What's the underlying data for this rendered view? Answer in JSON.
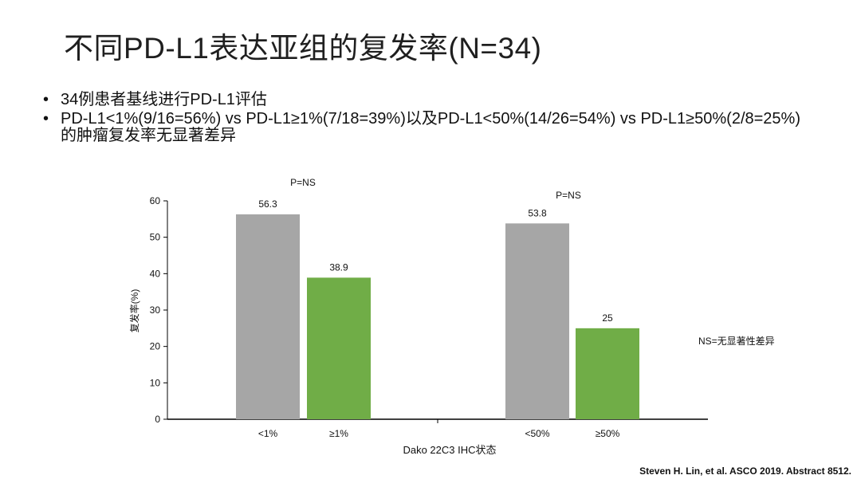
{
  "slide": {
    "title": "不同PD-L1表达亚组的复发率(N=34)",
    "bullets": [
      "34例患者基线进行PD-L1评估",
      "PD-L1<1%(9/16=56%) vs PD-L1≥1%(7/18=39%)以及PD-L1<50%(14/26=54%) vs PD-L1≥50%(2/8=25%)的肿瘤复发率无显著差异"
    ],
    "citation": "Steven H. Lin, et al. ASCO 2019. Abstract 8512."
  },
  "chart_data": {
    "type": "bar",
    "categories": [
      "<1%",
      "≥1%",
      "<50%",
      "≥50%"
    ],
    "values": [
      56.3,
      38.9,
      53.8,
      25
    ],
    "data_labels": [
      "56.3",
      "38.9",
      "53.8",
      "25"
    ],
    "bar_colors": [
      "#a6a6a6",
      "#70ad47",
      "#a6a6a6",
      "#70ad47"
    ],
    "groups": [
      {
        "categories": [
          "<1%",
          "≥1%"
        ],
        "p_label": "P=NS"
      },
      {
        "categories": [
          "<50%",
          "≥50%"
        ],
        "p_label": "P=NS"
      }
    ],
    "xlabel": "Dako 22C3  IHC状态",
    "ylabel": "复发率(%)",
    "ylim": [
      0,
      60
    ],
    "yticks": [
      0,
      10,
      20,
      30,
      40,
      50,
      60
    ],
    "annotation": "NS=无显著性差异",
    "grid": false,
    "legend": "none"
  }
}
